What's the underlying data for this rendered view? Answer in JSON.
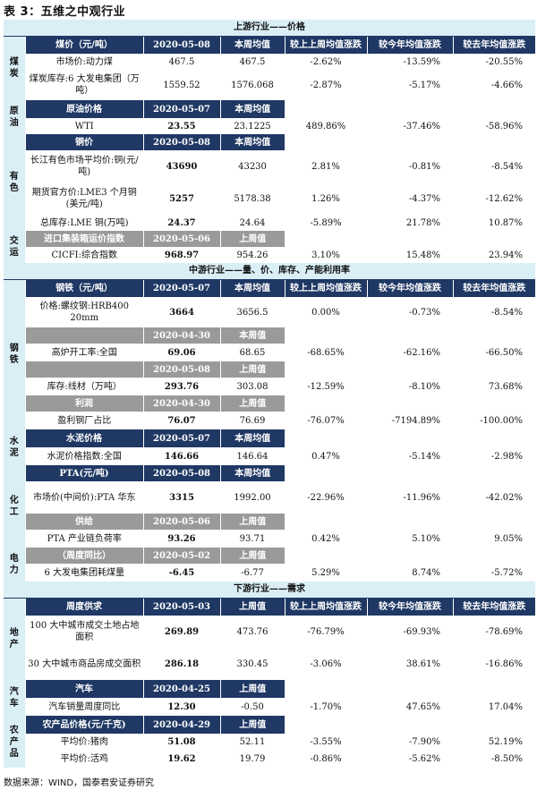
{
  "title": "表 3：五维之中观行业",
  "source": "数据来源：WIND，国泰君安证券研究",
  "sections": {
    "upstream": "上游行业——价格",
    "midstream": "中游行业——量、价、库存、产能利用率",
    "downstream": "下游行业——需求"
  },
  "headers": {
    "this_week_avg": "本周均值",
    "last_week_value": "上周值",
    "this_week_value": "本周值",
    "chg_vs_last_week_avg": "较上上周均值涨跌",
    "chg_vs_this_year_avg": "较今年均值涨跌",
    "chg_vs_last_year_avg": "较去年均值涨跌"
  },
  "side": {
    "coal": "煤\n炭",
    "oil": "原\n油",
    "copper": "有\n色",
    "transport": "交\n运",
    "steel": "钢\n铁",
    "cement": "水\n泥",
    "chem": "化\n工",
    "power": "电\n力",
    "realestate": "地\n产",
    "auto": "汽\n车",
    "agri": "农\n产\n品"
  },
  "coal": {
    "group": "煤价（元/吨）",
    "date": "2020-05-08",
    "rows": [
      {
        "name": "市场价:动力煤",
        "v": "467.5",
        "avg": "467.5",
        "w": "-2.62%",
        "y": "-13.59%",
        "ly": "-20.55%"
      },
      {
        "name": "煤炭库存:6 大发电集团（万吨）",
        "v": "1559.52",
        "avg": "1576.068",
        "w": "-2.87%",
        "y": "-5.17%",
        "ly": "-4.66%"
      }
    ]
  },
  "oil": {
    "group": "原油价格",
    "date": "2020-05-07",
    "rows": [
      {
        "name": "WTI",
        "v": "23.55",
        "avg": "23.1225",
        "w": "489.86%",
        "y": "-37.46%",
        "ly": "-58.96%"
      }
    ]
  },
  "copper": {
    "group": "铜价",
    "date": "2020-05-08",
    "rows": [
      {
        "name": "长江有色市场平均价:铜(元/吨)",
        "v": "43690",
        "avg": "43230",
        "w": "2.81%",
        "y": "-0.81%",
        "ly": "-8.54%"
      },
      {
        "name": "期货官方价:LME3 个月铜(美元/吨)",
        "v": "5257",
        "avg": "5178.38",
        "w": "1.26%",
        "y": "-4.37%",
        "ly": "-12.62%"
      },
      {
        "name": "总库存:LME 铜(万吨)",
        "v": "24.37",
        "avg": "24.64",
        "w": "-5.89%",
        "y": "21.78%",
        "ly": "10.87%"
      }
    ]
  },
  "transport": {
    "group": "进口集装箱运价指数",
    "date": "2020-05-06",
    "rows": [
      {
        "name": "CICFI:综合指数",
        "v": "968.97",
        "avg": "954.26",
        "w": "3.10%",
        "y": "15.48%",
        "ly": "23.94%"
      }
    ]
  },
  "steel": {
    "group": "钢铁（元/吨）",
    "date": "2020-05-07",
    "price": {
      "name": "价格:螺纹钢:HRB400 20mm",
      "v": "3664",
      "avg": "3656.5",
      "w": "0.00%",
      "y": "-0.73%",
      "ly": "-8.54%"
    },
    "furnace_date": "2020-04-30",
    "furnace": {
      "name": "高炉开工率:全国",
      "v": "69.06",
      "avg": "68.65",
      "w": "-68.65%",
      "y": "-62.16%",
      "ly": "-66.50%"
    },
    "stock_date": "2020-05-08",
    "stock": {
      "name": "库存:线材（万吨）",
      "v": "293.76",
      "avg": "303.08",
      "w": "-12.59%",
      "y": "-8.10%",
      "ly": "73.68%"
    },
    "profit_group": "利润",
    "profit_date": "2020-04-30",
    "profit": {
      "name": "盈利钢厂占比",
      "v": "76.07",
      "avg": "76.69",
      "w": "-76.07%",
      "y": "-7194.89%",
      "ly": "-100.00%"
    }
  },
  "cement": {
    "group": "水泥价格",
    "date": "2020-05-07",
    "rows": [
      {
        "name": "水泥价格指数:全国",
        "v": "146.66",
        "avg": "146.64",
        "w": "0.47%",
        "y": "-5.14%",
        "ly": "-2.98%"
      }
    ]
  },
  "chem": {
    "group": "PTA(元/吨)",
    "date": "2020-05-08",
    "price": {
      "name": "市场价(中间价):PTA 华东",
      "v": "3315",
      "avg": "1992.00",
      "w": "-22.96%",
      "y": "-11.96%",
      "ly": "-42.02%"
    },
    "supply_group": "供给",
    "supply_date": "2020-05-06",
    "supply": {
      "name": "PTA 产业链负荷率",
      "v": "93.26",
      "avg": "93.71",
      "w": "0.42%",
      "y": "5.10%",
      "ly": "9.05%"
    }
  },
  "power": {
    "group": "（周度同比）",
    "date": "2020-05-02",
    "rows": [
      {
        "name": "6 大发电集团耗煤量",
        "v": "-6.45",
        "avg": "-6.77",
        "w": "5.29%",
        "y": "8.74%",
        "ly": "-5.72%"
      }
    ]
  },
  "realestate": {
    "group": "周度供求",
    "date": "2020-05-03",
    "rows": [
      {
        "name": "100 大中城市成交土地占地面积",
        "v": "269.89",
        "avg": "473.76",
        "w": "-76.79%",
        "y": "-69.93%",
        "ly": "-78.69%"
      },
      {
        "name": "30 大中城市商品房成交面积",
        "v": "286.18",
        "avg": "330.45",
        "w": "-3.06%",
        "y": "38.61%",
        "ly": "-16.86%"
      }
    ]
  },
  "auto": {
    "group": "汽车",
    "date": "2020-04-25",
    "rows": [
      {
        "name": "汽车销量周度同比",
        "v": "12.30",
        "avg": "-0.50",
        "w": "-1.70%",
        "y": "47.65%",
        "ly": "17.04%"
      }
    ]
  },
  "agri": {
    "group": "农产品价格(元/千克)",
    "date": "2020-04-29",
    "rows": [
      {
        "name": "平均价:猪肉",
        "v": "51.08",
        "avg": "52.11",
        "w": "-3.55%",
        "y": "-7.90%",
        "ly": "52.19%"
      },
      {
        "name": "平均价:活鸡",
        "v": "19.62",
        "avg": "19.79",
        "w": "-0.86%",
        "y": "-5.62%",
        "ly": "-8.50%"
      }
    ]
  }
}
